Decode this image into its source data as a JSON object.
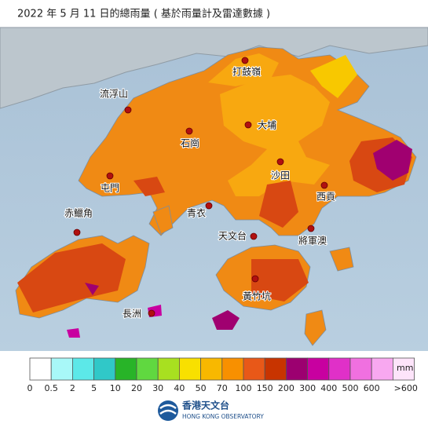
{
  "header": {
    "title": "2022 年  5  月 11 日的總雨量 ( 基於雨量計及雷達數據 )"
  },
  "places": [
    {
      "label": "打鼓嶺"
    },
    {
      "label": "流浮山"
    },
    {
      "label": "大埔"
    },
    {
      "label": "石崗"
    },
    {
      "label": "沙田"
    },
    {
      "label": "屯門"
    },
    {
      "label": "西貢"
    },
    {
      "label": "青衣"
    },
    {
      "label": "赤鱲角"
    },
    {
      "label": "天文台"
    },
    {
      "label": "將軍澳"
    },
    {
      "label": "黃竹坑"
    },
    {
      "label": "長洲"
    }
  ],
  "legend": {
    "unit": "mm",
    "colors": [
      "#ffffff",
      "#a8f8f8",
      "#5ce8e8",
      "#30c8c8",
      "#28b428",
      "#60d840",
      "#a8e020",
      "#f8e000",
      "#f8b800",
      "#f89000",
      "#e85818",
      "#c83400",
      "#9c0070",
      "#c800a0",
      "#e030c8",
      "#f070e0",
      "#f8a8f0",
      "#fde4fa"
    ],
    "labels": [
      "0",
      "0.5",
      "2",
      "5",
      "10",
      "20",
      "30",
      "40",
      "50",
      "70",
      "100",
      "150",
      "200",
      "300",
      "400",
      "500",
      "600",
      ">600"
    ]
  },
  "logo": {
    "name": "香港天文台",
    "english": "HONG KONG OBSERVATORY"
  }
}
